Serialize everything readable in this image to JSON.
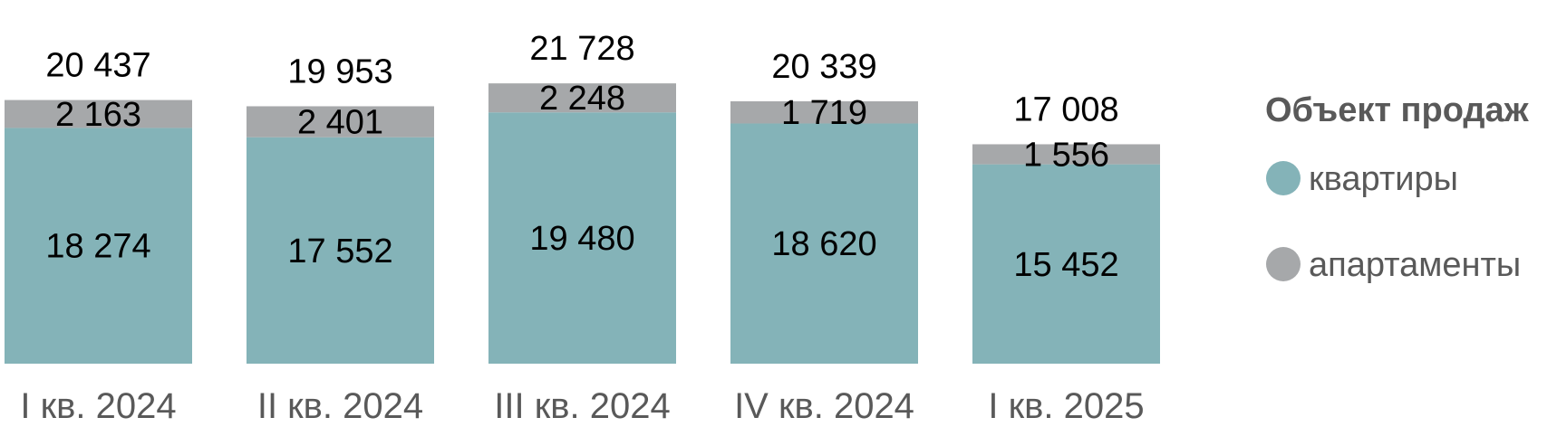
{
  "chart_data": {
    "type": "bar",
    "stacked": true,
    "categories": [
      "I кв. 2024",
      "II кв. 2024",
      "III кв. 2024",
      "IV кв. 2024",
      "I кв. 2025"
    ],
    "series": [
      {
        "name": "квартиры",
        "values": [
          18274,
          17552,
          19480,
          18620,
          15452
        ],
        "color": "#84B3B8"
      },
      {
        "name": "апартаменты",
        "values": [
          2163,
          2401,
          2248,
          1719,
          1556
        ],
        "color": "#A6A8AA"
      }
    ],
    "totals": [
      20437,
      19953,
      21728,
      20339,
      17008
    ],
    "value_labels": {
      "квартиры": [
        "18 274",
        "17 552",
        "19 480",
        "18 620",
        "15 452"
      ],
      "апартаменты": [
        "2 163",
        "2 401",
        "2 248",
        "1 719",
        "1 556"
      ],
      "total": [
        "20 437",
        "19 953",
        "21 728",
        "20 339",
        "17 008"
      ]
    },
    "legend_title": "Объект продаж",
    "legend_position": "right",
    "grid": false,
    "ylim": [
      0,
      22800
    ],
    "colors": {
      "category_label": "#595959",
      "legend_text": "#595959",
      "data_label": "#000000"
    }
  }
}
